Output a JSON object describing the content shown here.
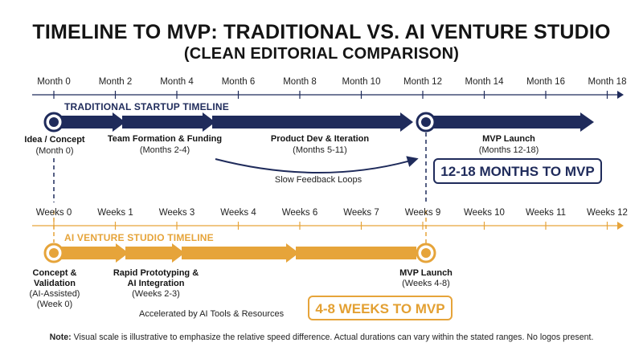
{
  "title": "TIMELINE TO MVP: TRADITIONAL VS. AI VENTURE STUDIO",
  "subtitle": "(CLEAN EDITORIAL COMPARISON)",
  "colors": {
    "navy": "#1f2b5b",
    "orange": "#e6a43a",
    "text": "#141414"
  },
  "traditional": {
    "axis_ticks": [
      "Month 0",
      "Month 2",
      "Month 4",
      "Month 6",
      "Month 8",
      "Month 10",
      "Month 12",
      "Month 14",
      "Month 16",
      "Month 18"
    ],
    "label": "TRADITIONAL STARTUP TIMELINE",
    "stages": [
      {
        "title": "Idea / Concept",
        "note": "(Month 0)"
      },
      {
        "title": "Team Formation & Funding",
        "note": "(Months 2-4)"
      },
      {
        "title": "Product Dev & Iteration",
        "note": "(Months 5-11)"
      },
      {
        "title": "MVP Launch",
        "note": "(Months 12-18)"
      }
    ],
    "feedback_note": "Slow Feedback Loops",
    "summary": "12-18 MONTHS TO MVP"
  },
  "ai": {
    "axis_ticks": [
      "Weeks 0",
      "Weeks 1",
      "Weeks 3",
      "Weeks 4",
      "Weeks 6",
      "Weeks 7",
      "Weeks 9",
      "Weeks 10",
      "Weeks 11",
      "Weeks 12"
    ],
    "label": "AI VENTURE STUDIO TIMELINE",
    "stages": [
      {
        "title_1": "Concept &",
        "title_2": "Validation",
        "note_1": "(AI-Assisted)",
        "note_2": "(Week 0)"
      },
      {
        "title_1": "Rapid Prototyping &",
        "title_2": "AI Integration",
        "note_1": "(Weeks 2-3)"
      },
      {
        "title_1": "MVP Launch",
        "note_1": "(Weeks 4-8)"
      }
    ],
    "accel_note": "Accelerated by AI Tools & Resources",
    "summary": "4-8 WEEKS TO MVP"
  },
  "footnote": {
    "label": "Note:",
    "text": " Visual scale is illustrative to emphasize the relative speed difference. Actual durations can vary within the stated ranges. No logos present."
  }
}
